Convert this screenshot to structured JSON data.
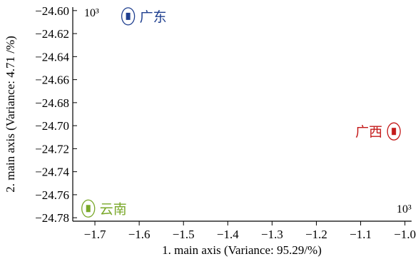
{
  "chart_data": {
    "type": "scatter",
    "xlabel": "1. main axis (Variance: 95.29/%)",
    "ylabel": "2. main axis (Variance: 4.71 /%)",
    "x_multiplier": "10³",
    "y_multiplier": "10³",
    "xlim": [
      -1.75,
      -0.985
    ],
    "ylim": [
      -24.783,
      -24.597
    ],
    "x_ticks": [
      -1.7,
      -1.6,
      -1.5,
      -1.4,
      -1.3,
      -1.2,
      -1.1,
      -1.0
    ],
    "x_tick_labels": [
      "−1.7",
      "−1.6",
      "−1.5",
      "−1.4",
      "−1.3",
      "−1.2",
      "−1.1",
      "−1.0"
    ],
    "y_ticks": [
      -24.6,
      -24.62,
      -24.64,
      -24.66,
      -24.68,
      -24.7,
      -24.72,
      -24.74,
      -24.76,
      -24.78
    ],
    "y_tick_labels": [
      "−24.60",
      "−24.62",
      "−24.64",
      "−24.66",
      "−24.68",
      "−24.70",
      "−24.72",
      "−24.74",
      "−24.76",
      "−24.78"
    ],
    "grid": false,
    "groups": [
      {
        "name": "广东",
        "x": -1.625,
        "y": -24.605,
        "color": "#1f3f8f",
        "label_side": "right"
      },
      {
        "name": "广西",
        "x": -1.025,
        "y": -24.705,
        "color": "#c41a1a",
        "label_side": "left"
      },
      {
        "name": "云南",
        "x": -1.715,
        "y": -24.772,
        "color": "#7aa82a",
        "label_side": "right"
      }
    ]
  }
}
